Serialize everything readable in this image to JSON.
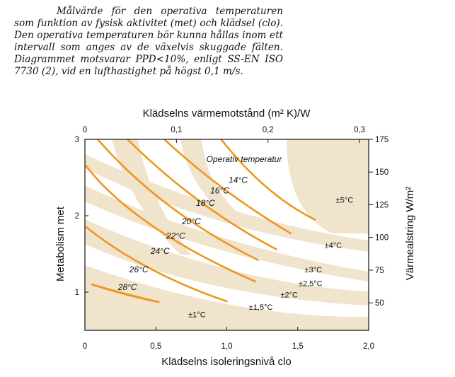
{
  "caption": "Målvärde för den operativa temperaturen som funktion av fysisk aktivitet (met) och klädsel (clo). Den operativa temperaturen bör kunna hållas inom ett intervall som anges av de växelvis skuggade fälten. Diagrammet motsvarar PPD<10%, enligt SS-EN ISO 7730 (2), vid en lufthastighet på högst 0,1 m/s.",
  "chart_data": {
    "type": "line",
    "title": "",
    "xlabel": "Klädselns isoleringsnivå clo",
    "ylabel": "Metabolism met",
    "x2label": "Klädselns värmemotstånd (m² K)/W",
    "y2label": "Värmealstring W/m²",
    "xlim": [
      0,
      2.0
    ],
    "ylim": [
      0.5,
      3.0
    ],
    "x2lim": [
      0,
      0.31
    ],
    "y2lim": [
      29,
      175
    ],
    "xticks": [
      {
        "v": 0,
        "t": "0"
      },
      {
        "v": 0.5,
        "t": "0,5"
      },
      {
        "v": 1.0,
        "t": "1,0"
      },
      {
        "v": 1.5,
        "t": "1,5"
      },
      {
        "v": 2.0,
        "t": "2,0"
      }
    ],
    "yticks": [
      {
        "v": 1,
        "t": "1"
      },
      {
        "v": 2,
        "t": "2"
      },
      {
        "v": 3,
        "t": "3"
      }
    ],
    "x2ticks": [
      {
        "v": 0,
        "t": "0"
      },
      {
        "v": 0.1,
        "t": "0,1"
      },
      {
        "v": 0.2,
        "t": "0,2"
      },
      {
        "v": 0.3,
        "t": "0,3"
      }
    ],
    "y2ticks": [
      {
        "v": 50,
        "t": "50"
      },
      {
        "v": 75,
        "t": "75"
      },
      {
        "v": 100,
        "t": "100"
      },
      {
        "v": 125,
        "t": "125"
      },
      {
        "v": 150,
        "t": "150"
      },
      {
        "v": 175,
        "t": "175"
      }
    ],
    "series_note": "Operativ temperatur",
    "series": [
      {
        "name": "14°C",
        "points": [
          [
            0.96,
            3.0
          ],
          [
            1.13,
            2.6
          ],
          [
            1.35,
            2.2
          ],
          [
            1.62,
            1.95
          ]
        ],
        "label": [
          1.08,
          2.43
        ]
      },
      {
        "name": "16°C",
        "points": [
          [
            0.56,
            3.0
          ],
          [
            0.85,
            2.5
          ],
          [
            1.15,
            2.1
          ],
          [
            1.45,
            1.77
          ]
        ],
        "label": [
          0.95,
          2.29
        ]
      },
      {
        "name": "18°C",
        "points": [
          [
            0.3,
            3.0
          ],
          [
            0.6,
            2.45
          ],
          [
            0.95,
            1.95
          ],
          [
            1.35,
            1.56
          ]
        ],
        "label": [
          0.85,
          2.13
        ]
      },
      {
        "name": "20°C",
        "points": [
          [
            0.09,
            3.0
          ],
          [
            0.35,
            2.45
          ],
          [
            0.7,
            1.9
          ],
          [
            1.22,
            1.42
          ]
        ],
        "label": [
          0.75,
          1.89
        ]
      },
      {
        "name": "22°C",
        "points": [
          [
            0.01,
            2.65
          ],
          [
            0.2,
            2.18
          ],
          [
            0.6,
            1.62
          ],
          [
            1.2,
            1.14
          ]
        ],
        "label": [
          0.64,
          1.7
        ]
      },
      {
        "name": "24°C",
        "points": [
          [
            0.01,
            1.85
          ],
          [
            0.3,
            1.42
          ],
          [
            0.65,
            1.1
          ],
          [
            1.0,
            0.88
          ]
        ],
        "label": [
          0.53,
          1.5
        ]
      },
      {
        "name": "26°C",
        "points": [
          [
            0.05,
            1.1
          ],
          [
            0.25,
            0.99
          ],
          [
            0.52,
            0.87
          ]
        ],
        "label": [
          0.38,
          1.26
        ]
      },
      {
        "name": "28°C",
        "points": [
          [
            0.03,
            2.99
          ],
          [
            0.1,
            2.99
          ]
        ],
        "label": [
          0.3,
          1.03
        ]
      }
    ],
    "bands": [
      {
        "label": "±1°C",
        "label_pos": [
          0.79,
          0.67
        ]
      },
      {
        "label": "±1,5°C",
        "label_pos": [
          1.24,
          0.77
        ]
      },
      {
        "label": "±2°C",
        "label_pos": [
          1.44,
          0.93
        ]
      },
      {
        "label": "±2,5°C",
        "label_pos": [
          1.59,
          1.08
        ]
      },
      {
        "label": "±3°C",
        "label_pos": [
          1.61,
          1.26
        ]
      },
      {
        "label": "±4°C",
        "label_pos": [
          1.75,
          1.58
        ]
      },
      {
        "label": "±5°C",
        "label_pos": [
          1.83,
          2.17
        ]
      }
    ]
  }
}
